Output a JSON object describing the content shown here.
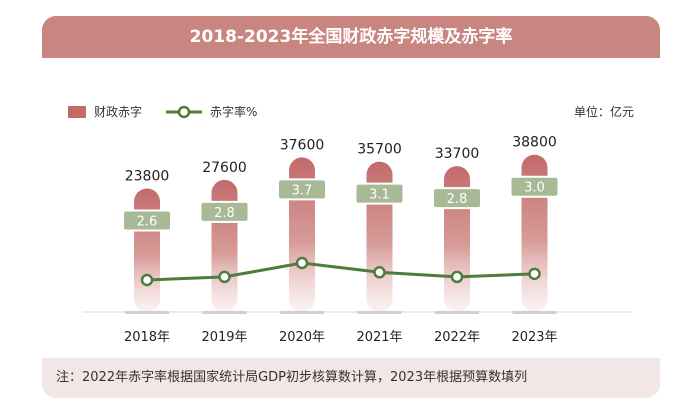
{
  "chart_data": {
    "type": "bar",
    "title": "2018-2023年全国财政赤字规模及赤字率",
    "unit_label": "单位：亿元",
    "categories": [
      "2018年",
      "2019年",
      "2020年",
      "2021年",
      "2022年",
      "2023年"
    ],
    "series": [
      {
        "name": "财政赤字",
        "type": "bar",
        "values": [
          23800,
          27600,
          37600,
          35700,
          33700,
          38800
        ]
      },
      {
        "name": "赤字率%",
        "type": "line",
        "values": [
          2.6,
          2.8,
          3.7,
          3.1,
          2.8,
          3.0
        ]
      }
    ],
    "rate_labels": [
      "2.6",
      "2.8",
      "3.7",
      "3.1",
      "2.8",
      "3.0"
    ],
    "bar_color": "#c26a6a",
    "line_color": "#4d7d3c",
    "note": "注：2022年赤字率根据国家统计局GDP初步核算数计算，2023年根据预算数填列"
  }
}
